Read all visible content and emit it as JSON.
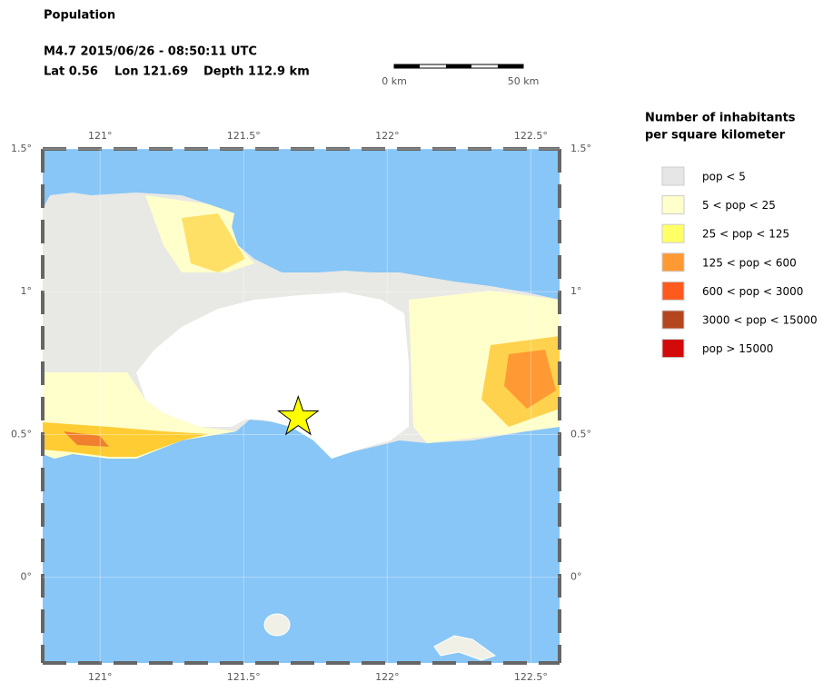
{
  "title": "Population",
  "event": {
    "line1": "M4.7  2015/06/26 - 08:50:11 UTC",
    "lat": "Lat  0.56",
    "lon": "Lon 121.69",
    "depth": "Depth 112.9 km"
  },
  "scale_bar": {
    "start": "0 km",
    "end": "50 km"
  },
  "map": {
    "xlim": [
      120.8,
      122.6
    ],
    "ylim": [
      -0.3,
      1.5
    ],
    "xticks": [
      {
        "value": 121,
        "label": "121°"
      },
      {
        "value": 121.5,
        "label": "121.5°"
      },
      {
        "value": 122,
        "label": "122°"
      },
      {
        "value": 122.5,
        "label": "122.5°"
      }
    ],
    "yticks": [
      {
        "value": 1.5,
        "label": "1.5°"
      },
      {
        "value": 1,
        "label": "1°"
      },
      {
        "value": 0.5,
        "label": "0.5°"
      },
      {
        "value": 0,
        "label": "0°"
      }
    ],
    "epicenter": {
      "lon": 121.69,
      "lat": 0.56,
      "color": "#ffff00"
    }
  },
  "legend": {
    "title": [
      "Number of inhabitants",
      "per square kilometer"
    ],
    "items": [
      {
        "label": "pop < 5",
        "color": "#e6e6e6"
      },
      {
        "label": "5 < pop < 25",
        "color": "#ffffcc"
      },
      {
        "label": "25 < pop < 125",
        "color": "#ffff66"
      },
      {
        "label": "125 < pop < 600",
        "color": "#ff9933"
      },
      {
        "label": "600 < pop < 3000",
        "color": "#ff5a1e"
      },
      {
        "label": "3000 < pop < 15000",
        "color": "#b4461e"
      },
      {
        "label": "pop > 15000",
        "color": "#d20a0a"
      }
    ]
  }
}
